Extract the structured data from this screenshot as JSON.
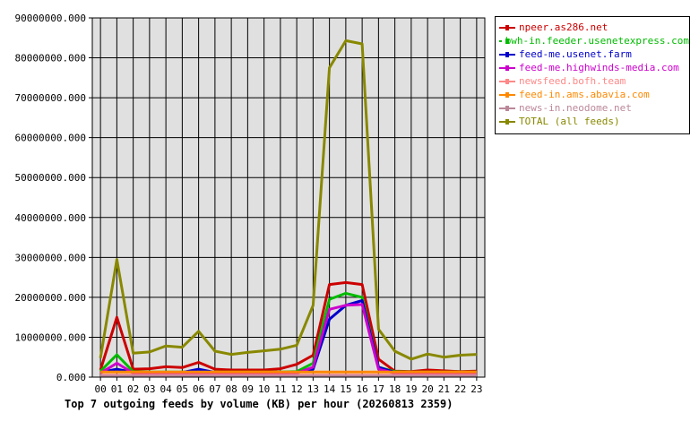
{
  "chart_data": {
    "type": "line",
    "title": "Top 7 outgoing feeds by volume (KB) per hour (20260813 2359)",
    "categories": [
      "00",
      "01",
      "02",
      "03",
      "04",
      "05",
      "06",
      "07",
      "08",
      "09",
      "10",
      "11",
      "12",
      "13",
      "14",
      "15",
      "16",
      "17",
      "18",
      "19",
      "20",
      "21",
      "22",
      "23"
    ],
    "y_ticks": [
      "0.000",
      "10000000.000",
      "20000000.000",
      "30000000.000",
      "40000000.000",
      "50000000.000",
      "60000000.000",
      "70000000.000",
      "80000000.000",
      "90000000.000"
    ],
    "ylim": [
      0,
      90000000
    ],
    "grid": true,
    "legend_position": "top-right",
    "series": [
      {
        "name": "npeer.as286.net",
        "color": "#cc0000",
        "values": [
          1800000,
          15000000,
          2000000,
          2100000,
          2600000,
          2400000,
          3700000,
          2000000,
          1800000,
          1800000,
          1800000,
          2100000,
          3200000,
          5500000,
          23200000,
          23700000,
          23200000,
          4500000,
          1500000,
          1400000,
          1800000,
          1600000,
          1400000,
          1500000
        ]
      },
      {
        "name": "bwh-in.feeder.usenetexpress.com",
        "color": "#00bb00",
        "values": [
          1500000,
          5600000,
          1400000,
          1300000,
          1300000,
          1300000,
          1300000,
          1300000,
          1300000,
          1300000,
          1300000,
          1300000,
          1400000,
          3500000,
          19500000,
          21000000,
          20000000,
          2500000,
          1400000,
          1300000,
          1300000,
          1300000,
          1300000,
          1300000
        ]
      },
      {
        "name": "feed-me.usenet.farm",
        "color": "#0000cc",
        "values": [
          1200000,
          2000000,
          1200000,
          1200000,
          1200000,
          1200000,
          2000000,
          1200000,
          1200000,
          1200000,
          1200000,
          1200000,
          1200000,
          2000000,
          14500000,
          18000000,
          19200000,
          2500000,
          1200000,
          1200000,
          1200000,
          1200000,
          1200000,
          1200000
        ]
      },
      {
        "name": "feed-me.highwinds-media.com",
        "color": "#cc00cc",
        "values": [
          1000000,
          3500000,
          1000000,
          1000000,
          1000000,
          1000000,
          1000000,
          1000000,
          1000000,
          1000000,
          1000000,
          1000000,
          1000000,
          2500000,
          17000000,
          18000000,
          18200000,
          2000000,
          1000000,
          1000000,
          1000000,
          1000000,
          1000000,
          1000000
        ]
      },
      {
        "name": "newsfeed.bofh.team",
        "color": "#ff8888",
        "values": [
          500000,
          500000,
          500000,
          500000,
          500000,
          500000,
          500000,
          500000,
          500000,
          500000,
          500000,
          500000,
          500000,
          500000,
          500000,
          500000,
          500000,
          500000,
          500000,
          500000,
          500000,
          500000,
          500000,
          500000
        ]
      },
      {
        "name": "feed-in.ams.abavia.com",
        "color": "#ff8800",
        "values": [
          1300000,
          1300000,
          1300000,
          1300000,
          1300000,
          1300000,
          1300000,
          1300000,
          1300000,
          1300000,
          1300000,
          1300000,
          1300000,
          1300000,
          1300000,
          1300000,
          1300000,
          1300000,
          1300000,
          1300000,
          1300000,
          1300000,
          1300000,
          1300000
        ]
      },
      {
        "name": "news-in.neodome.net",
        "color": "#bb8899",
        "values": [
          300000,
          300000,
          300000,
          300000,
          300000,
          300000,
          300000,
          300000,
          300000,
          300000,
          300000,
          300000,
          300000,
          300000,
          300000,
          300000,
          300000,
          300000,
          300000,
          300000,
          300000,
          300000,
          300000,
          300000
        ]
      },
      {
        "name": "TOTAL (all feeds)",
        "color": "#888800",
        "values": [
          4800000,
          29500000,
          6000000,
          6300000,
          7800000,
          7500000,
          11500000,
          6500000,
          5700000,
          6200000,
          6600000,
          7000000,
          8000000,
          18000000,
          77500000,
          84300000,
          83500000,
          12000000,
          6500000,
          4500000,
          5800000,
          5000000,
          5500000,
          5700000
        ]
      }
    ]
  }
}
